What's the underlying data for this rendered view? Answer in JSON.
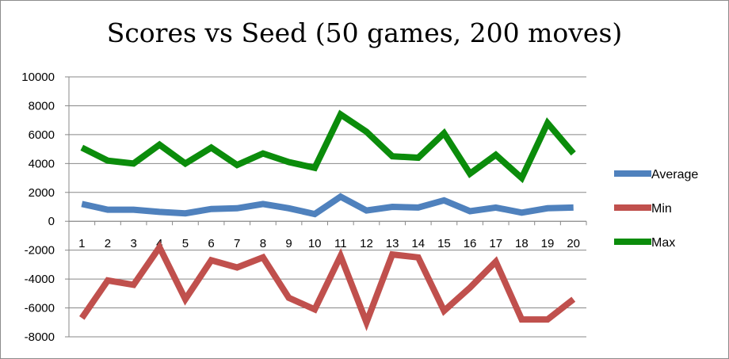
{
  "chart_data": {
    "type": "line",
    "title": "Scores vs Seed (50 games,  200 moves)",
    "xlabel": "",
    "ylabel": "",
    "categories": [
      "1",
      "2",
      "3",
      "4",
      "5",
      "6",
      "7",
      "8",
      "9",
      "10",
      "11",
      "12",
      "13",
      "14",
      "15",
      "16",
      "17",
      "18",
      "19",
      "20"
    ],
    "ylim": [
      -8000,
      10000
    ],
    "yticks": [
      "10000",
      "8000",
      "6000",
      "4000",
      "2000",
      "0",
      "-2000",
      "-4000",
      "-6000",
      "-8000"
    ],
    "grid": "horizontal",
    "legend_position": "right",
    "series": [
      {
        "name": "Average",
        "color": "#4f81bd",
        "values": [
          1200,
          800,
          800,
          650,
          550,
          850,
          900,
          1200,
          900,
          500,
          1700,
          750,
          1000,
          950,
          1450,
          700,
          950,
          600,
          900,
          950
        ]
      },
      {
        "name": "Min",
        "color": "#c0504d",
        "values": [
          -6700,
          -4100,
          -4400,
          -1800,
          -5400,
          -2700,
          -3200,
          -2500,
          -5300,
          -6100,
          -2400,
          -7000,
          -2300,
          -2500,
          -6200,
          -4600,
          -2800,
          -6800,
          -6800,
          -5400
        ]
      },
      {
        "name": "Max",
        "color": "#0b8c0b",
        "values": [
          5100,
          4200,
          4000,
          5300,
          4000,
          5100,
          3900,
          4700,
          4100,
          3700,
          7400,
          6200,
          4500,
          4400,
          6100,
          3300,
          4600,
          3000,
          6800,
          4700
        ]
      }
    ]
  }
}
